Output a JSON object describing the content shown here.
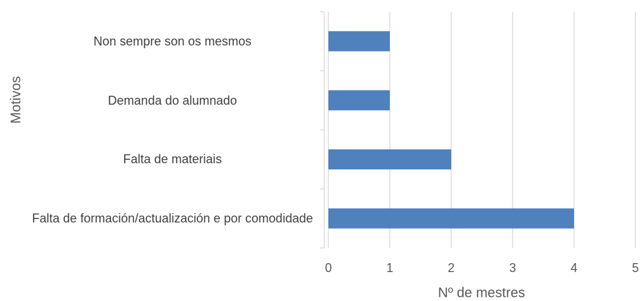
{
  "chart_data": {
    "type": "bar",
    "orientation": "horizontal",
    "x_label": "Nº de mestres",
    "y_label": "Motivos",
    "categories": [
      "Non sempre son os mesmos",
      "Demanda do alumnado",
      "Falta de materiais",
      "Falta de formación/actualización e por comodidade"
    ],
    "values": [
      1,
      1,
      2,
      4
    ],
    "color": "#4f81bd",
    "xlim": [
      0,
      5
    ],
    "xticks": [
      0,
      1,
      2,
      3,
      4,
      5
    ],
    "grid": true
  }
}
